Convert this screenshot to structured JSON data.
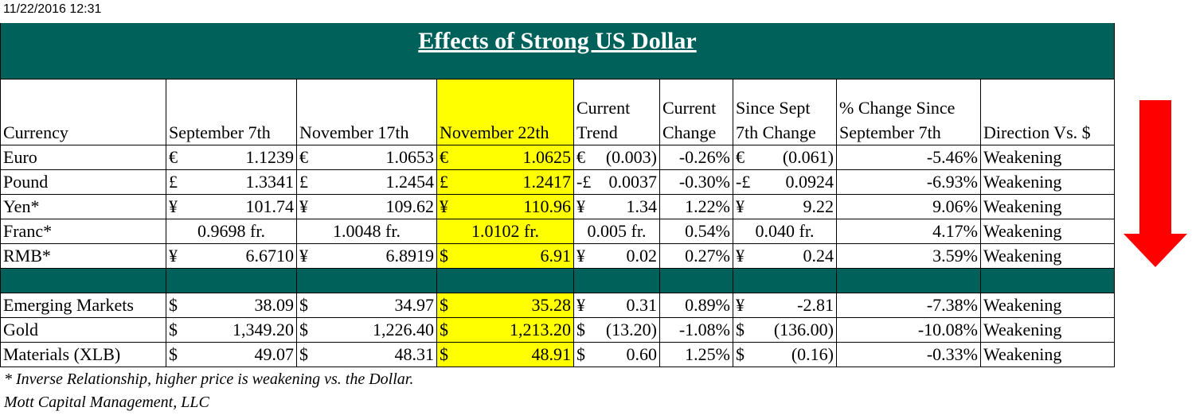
{
  "timestamp": "11/22/2016 12:31",
  "title": "Effects of Strong US Dollar",
  "headers": {
    "currency": "Currency",
    "sep7": "September 7th",
    "nov17": "November 17th",
    "nov22": "November 22th",
    "trend_line1": "Current",
    "trend_line2": "Trend",
    "change_line1": "Current",
    "change_line2": "Change",
    "since_line1": "Since Sept",
    "since_line2": "7th Change",
    "pct_line1": "% Change Since",
    "pct_line2": "September 7th",
    "direction": "Direction Vs. $"
  },
  "rows": [
    {
      "name": "Euro",
      "sep7_sym": "€",
      "sep7": "1.1239",
      "nov17_sym": "€",
      "nov17": "1.0653",
      "nov22_sym": "€",
      "nov22": "1.0625",
      "trend_sym": "€",
      "trend": "(0.003)",
      "change": "-0.26%",
      "since_sym": "€",
      "since": "(0.061)",
      "pct": "-5.46%",
      "direction": "Weakening"
    },
    {
      "name": "Pound",
      "sep7_sym": "£",
      "sep7": "1.3341",
      "nov17_sym": "£",
      "nov17": "1.2454",
      "nov22_sym": "£",
      "nov22": "1.2417",
      "trend_sym": "-£",
      "trend": "0.0037",
      "change": "-0.30%",
      "since_sym": "-£",
      "since": "0.0924",
      "pct": "-6.93%",
      "direction": "Weakening"
    },
    {
      "name": "Yen*",
      "sep7_sym": "¥",
      "sep7": "101.74",
      "nov17_sym": "¥",
      "nov17": "109.62",
      "nov22_sym": "¥",
      "nov22": "110.96",
      "trend_sym": "¥",
      "trend": "1.34",
      "change": "1.22%",
      "since_sym": "¥",
      "since": "9.22",
      "pct": "9.06%",
      "direction": "Weakening"
    },
    {
      "name": "Franc*",
      "sep7_sym": "",
      "sep7": "0.9698 fr.",
      "nov17_sym": "",
      "nov17": "1.0048 fr.",
      "nov22_sym": "",
      "nov22": "1.0102 fr.",
      "trend_sym": "",
      "trend": "0.005 fr.",
      "change": "0.54%",
      "since_sym": "",
      "since": "0.040 fr.",
      "pct": "4.17%",
      "direction": "Weakening"
    },
    {
      "name": "RMB*",
      "sep7_sym": "¥",
      "sep7": "6.6710",
      "nov17_sym": "¥",
      "nov17": "6.8919",
      "nov22_sym": "$",
      "nov22": "6.91",
      "trend_sym": "¥",
      "trend": "0.02",
      "change": "0.27%",
      "since_sym": "¥",
      "since": "0.24",
      "pct": "3.59%",
      "direction": "Weakening"
    },
    {
      "name": "Emerging Markets",
      "sep7_sym": "$",
      "sep7": "38.09",
      "nov17_sym": "$",
      "nov17": "34.97",
      "nov22_sym": "$",
      "nov22": "35.28",
      "trend_sym": "¥",
      "trend": "0.31",
      "change": "0.89%",
      "since_sym": "¥",
      "since": "-2.81",
      "pct": "-7.38%",
      "direction": "Weakening"
    },
    {
      "name": "Gold",
      "sep7_sym": "$",
      "sep7": "1,349.20",
      "nov17_sym": "$",
      "nov17": "1,226.40",
      "nov22_sym": "$",
      "nov22": "1,213.20",
      "trend_sym": "$",
      "trend": "(13.20)",
      "change": "-1.08%",
      "since_sym": "$",
      "since": "(136.00)",
      "pct": "-10.08%",
      "direction": "Weakening"
    },
    {
      "name": "Materials (XLB)",
      "sep7_sym": "$",
      "sep7": "49.07",
      "nov17_sym": "$",
      "nov17": "48.31",
      "nov22_sym": "$",
      "nov22": "48.91",
      "trend_sym": "$",
      "trend": "0.60",
      "change": "1.25%",
      "since_sym": "$",
      "since": "(0.16)",
      "pct": "-0.33%",
      "direction": "Weakening"
    }
  ],
  "footnote": "* Inverse Relationship, higher price is weakening vs. the Dollar.",
  "attribution": "Mott Capital Management, LLC",
  "colors": {
    "banner": "#00605a",
    "highlight": "#ffff00",
    "arrow": "#ff0000"
  },
  "icons": {
    "arrow": "down-arrow-icon"
  }
}
